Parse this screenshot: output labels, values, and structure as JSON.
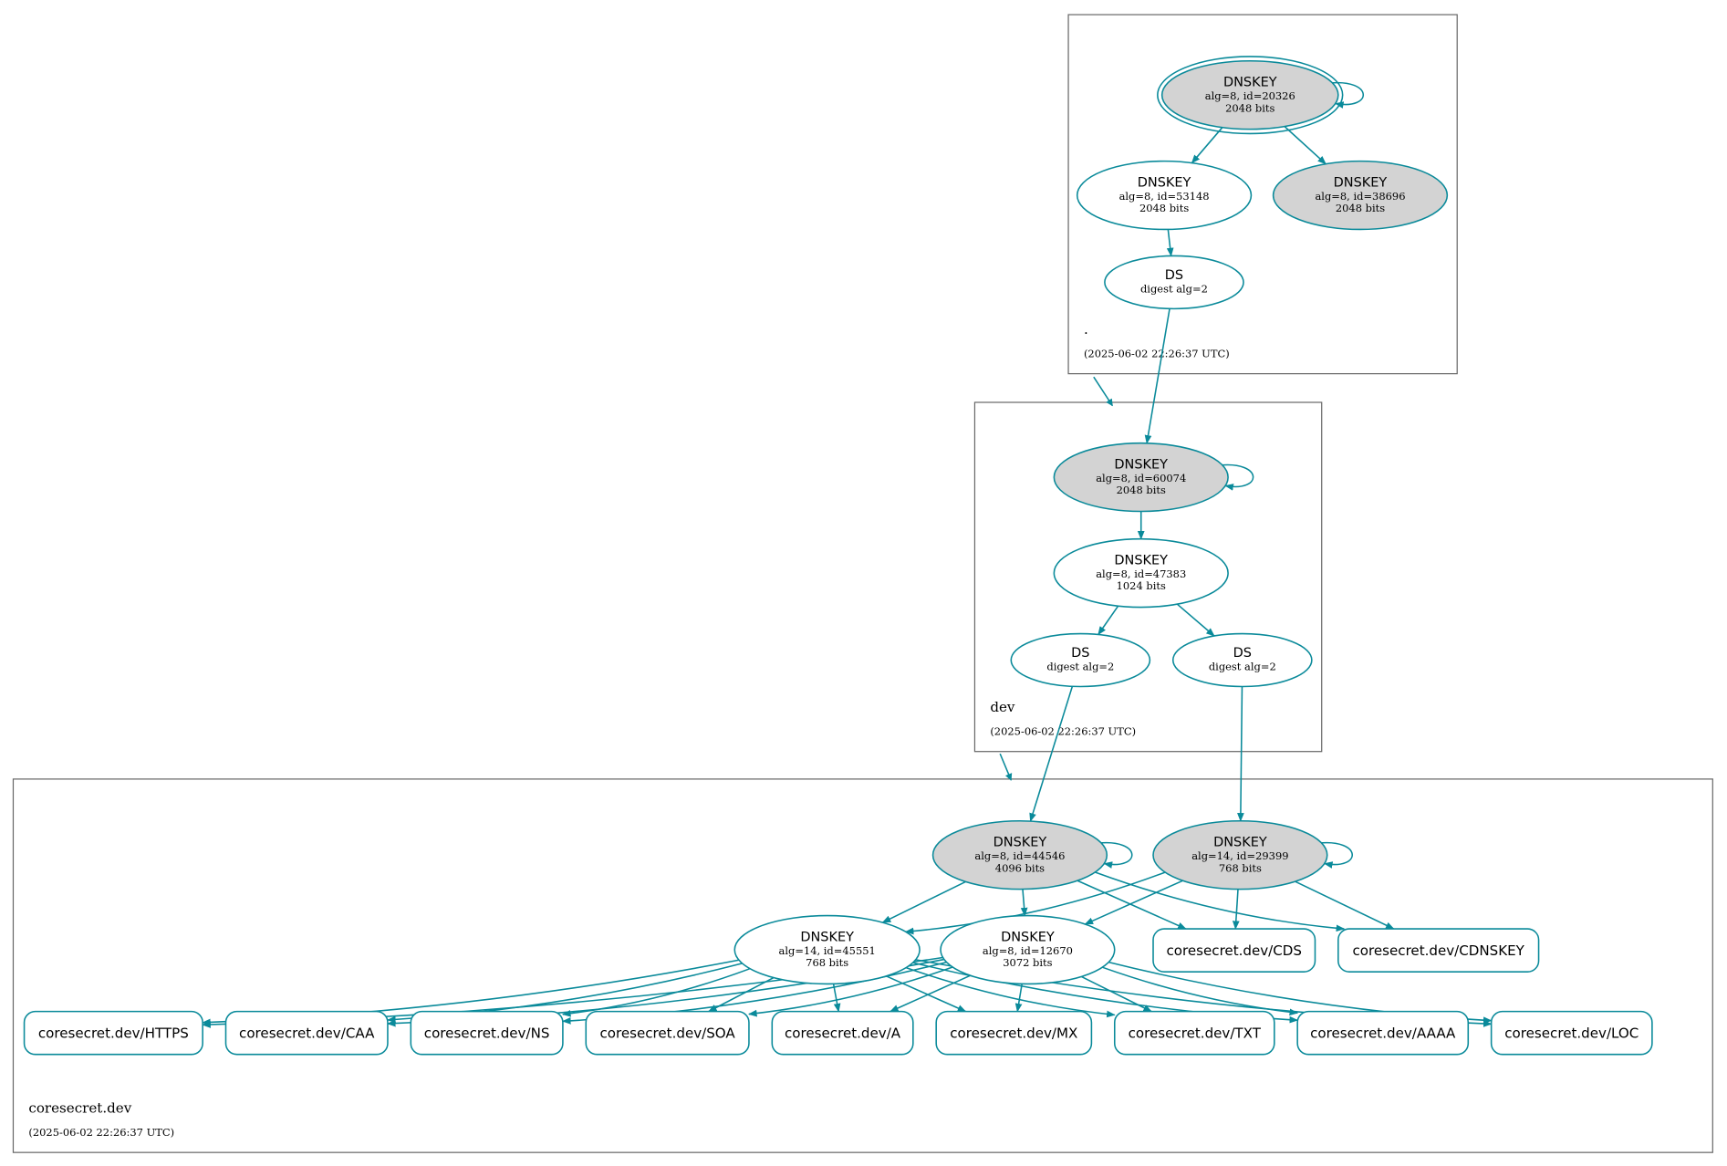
{
  "colors": {
    "edge": "#0a8a9a",
    "ksk_fill": "#d3d3d3",
    "zsk_fill": "#ffffff",
    "border": "#666666"
  },
  "zones": [
    {
      "id": "root",
      "name": ".",
      "timestamp": "(2025-06-02 22:26:37 UTC)",
      "nodes": [
        {
          "id": "k20326",
          "kind": "ellipse",
          "title": "DNSKEY",
          "lines": [
            "alg=8, id=20326",
            "2048 bits"
          ],
          "filled": true,
          "double": true
        },
        {
          "id": "k53148",
          "kind": "ellipse",
          "title": "DNSKEY",
          "lines": [
            "alg=8, id=53148",
            "2048 bits"
          ],
          "filled": false
        },
        {
          "id": "k38696",
          "kind": "ellipse",
          "title": "DNSKEY",
          "lines": [
            "alg=8, id=38696",
            "2048 bits"
          ],
          "filled": true
        },
        {
          "id": "dsroot",
          "kind": "ellipse",
          "title": "DS",
          "lines": [
            "digest alg=2"
          ],
          "filled": false
        }
      ]
    },
    {
      "id": "dev",
      "name": "dev",
      "timestamp": "(2025-06-02 22:26:37 UTC)",
      "nodes": [
        {
          "id": "k60074",
          "kind": "ellipse",
          "title": "DNSKEY",
          "lines": [
            "alg=8, id=60074",
            "2048 bits"
          ],
          "filled": true
        },
        {
          "id": "k47383",
          "kind": "ellipse",
          "title": "DNSKEY",
          "lines": [
            "alg=8, id=47383",
            "1024 bits"
          ],
          "filled": false
        },
        {
          "id": "ds1",
          "kind": "ellipse",
          "title": "DS",
          "lines": [
            "digest alg=2"
          ],
          "filled": false
        },
        {
          "id": "ds2",
          "kind": "ellipse",
          "title": "DS",
          "lines": [
            "digest alg=2"
          ],
          "filled": false
        }
      ]
    },
    {
      "id": "coresecret",
      "name": "coresecret.dev",
      "timestamp": "(2025-06-02 22:26:37 UTC)",
      "nodes": [
        {
          "id": "k44546",
          "kind": "ellipse",
          "title": "DNSKEY",
          "lines": [
            "alg=8, id=44546",
            "4096 bits"
          ],
          "filled": true
        },
        {
          "id": "k29399",
          "kind": "ellipse",
          "title": "DNSKEY",
          "lines": [
            "alg=14, id=29399",
            "768 bits"
          ],
          "filled": true
        },
        {
          "id": "k45551",
          "kind": "ellipse",
          "title": "DNSKEY",
          "lines": [
            "alg=14, id=45551",
            "768 bits"
          ],
          "filled": false
        },
        {
          "id": "k12670",
          "kind": "ellipse",
          "title": "DNSKEY",
          "lines": [
            "alg=8, id=12670",
            "3072 bits"
          ],
          "filled": false
        },
        {
          "id": "cds",
          "kind": "rrset",
          "title": "coresecret.dev/CDS"
        },
        {
          "id": "cdnskey",
          "kind": "rrset",
          "title": "coresecret.dev/CDNSKEY"
        },
        {
          "id": "https",
          "kind": "rrset",
          "title": "coresecret.dev/HTTPS"
        },
        {
          "id": "caa",
          "kind": "rrset",
          "title": "coresecret.dev/CAA"
        },
        {
          "id": "ns",
          "kind": "rrset",
          "title": "coresecret.dev/NS"
        },
        {
          "id": "soa",
          "kind": "rrset",
          "title": "coresecret.dev/SOA"
        },
        {
          "id": "a",
          "kind": "rrset",
          "title": "coresecret.dev/A"
        },
        {
          "id": "mx",
          "kind": "rrset",
          "title": "coresecret.dev/MX"
        },
        {
          "id": "txt",
          "kind": "rrset",
          "title": "coresecret.dev/TXT"
        },
        {
          "id": "aaaa",
          "kind": "rrset",
          "title": "coresecret.dev/AAAA"
        },
        {
          "id": "loc",
          "kind": "rrset",
          "title": "coresecret.dev/LOC"
        }
      ]
    }
  ],
  "edges": [
    [
      "k20326",
      "k20326"
    ],
    [
      "k20326",
      "k53148"
    ],
    [
      "k20326",
      "k38696"
    ],
    [
      "k53148",
      "dsroot"
    ],
    [
      "dsroot",
      "k60074"
    ],
    [
      "k60074",
      "k60074"
    ],
    [
      "k60074",
      "k47383"
    ],
    [
      "k47383",
      "ds1"
    ],
    [
      "k47383",
      "ds2"
    ],
    [
      "ds1",
      "k44546"
    ],
    [
      "ds2",
      "k29399"
    ],
    [
      "k44546",
      "k44546"
    ],
    [
      "k29399",
      "k29399"
    ],
    [
      "k44546",
      "k45551"
    ],
    [
      "k44546",
      "k12670"
    ],
    [
      "k44546",
      "cds"
    ],
    [
      "k44546",
      "cdnskey"
    ],
    [
      "k29399",
      "k45551"
    ],
    [
      "k29399",
      "k12670"
    ],
    [
      "k29399",
      "cds"
    ],
    [
      "k29399",
      "cdnskey"
    ],
    [
      "k45551",
      "https"
    ],
    [
      "k45551",
      "caa"
    ],
    [
      "k45551",
      "ns"
    ],
    [
      "k45551",
      "soa"
    ],
    [
      "k45551",
      "a"
    ],
    [
      "k45551",
      "mx"
    ],
    [
      "k45551",
      "txt"
    ],
    [
      "k45551",
      "aaaa"
    ],
    [
      "k45551",
      "loc"
    ],
    [
      "k12670",
      "https"
    ],
    [
      "k12670",
      "caa"
    ],
    [
      "k12670",
      "ns"
    ],
    [
      "k12670",
      "soa"
    ],
    [
      "k12670",
      "a"
    ],
    [
      "k12670",
      "mx"
    ],
    [
      "k12670",
      "txt"
    ],
    [
      "k12670",
      "aaaa"
    ],
    [
      "k12670",
      "loc"
    ]
  ],
  "delegations": [
    [
      "root",
      "dev"
    ],
    [
      "dev",
      "coresecret"
    ]
  ]
}
